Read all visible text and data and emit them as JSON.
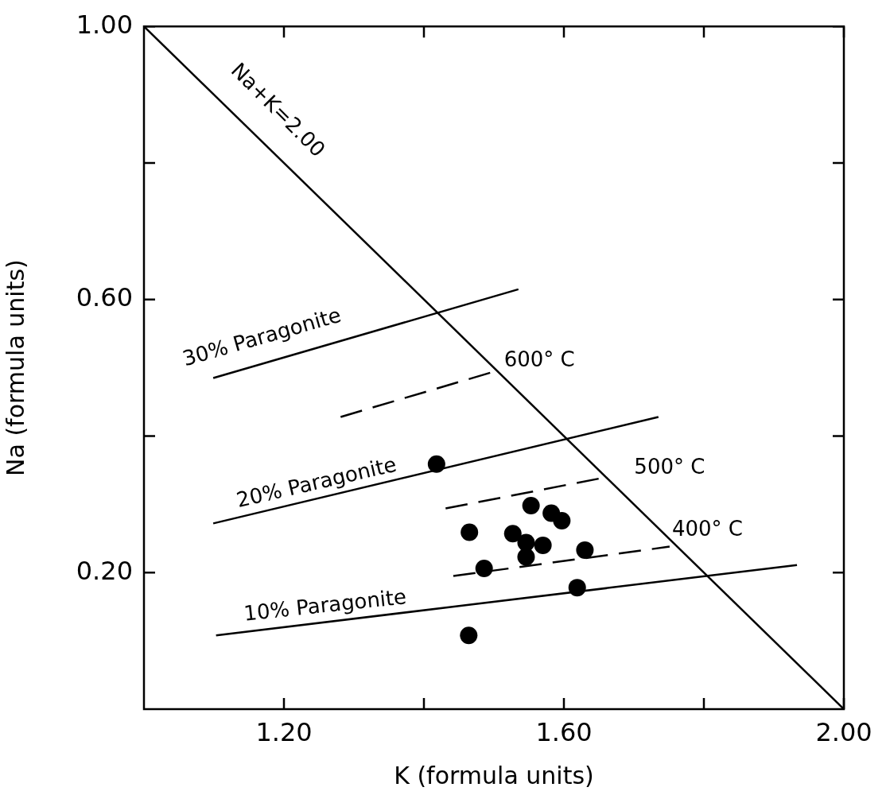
{
  "chart_data": {
    "type": "scatter",
    "xlabel": "K (formula units)",
    "ylabel": "Na (formula units)",
    "xlim": [
      1.0,
      2.0
    ],
    "ylim": [
      0.0,
      1.0
    ],
    "xticks": [
      {
        "value": 1.2,
        "label": "1.20"
      },
      {
        "value": 1.4,
        "label": null
      },
      {
        "value": 1.6,
        "label": "1.60"
      },
      {
        "value": 1.8,
        "label": null
      },
      {
        "value": 2.0,
        "label": "2.00"
      }
    ],
    "yticks": [
      {
        "value": 0.2,
        "label": "0.20"
      },
      {
        "value": 0.4,
        "label": null
      },
      {
        "value": 0.6,
        "label": "0.60"
      },
      {
        "value": 0.8,
        "label": null
      },
      {
        "value": 1.0,
        "label": "1.00"
      }
    ],
    "series": [
      {
        "color": "#000000",
        "marker": "circle",
        "x": [
          1.418,
          1.553,
          1.582,
          1.597,
          1.465,
          1.527,
          1.546,
          1.57,
          1.546,
          1.63,
          1.486,
          1.619,
          1.464
        ],
        "values": [
          0.359,
          0.298,
          0.287,
          0.276,
          0.259,
          0.257,
          0.244,
          0.24,
          0.223,
          0.233,
          0.206,
          0.178,
          0.108
        ]
      },
      {
        "type": "line",
        "color": "#000000",
        "marker": "none",
        "line_style": "solid",
        "x": [
          1.0,
          2.0
        ],
        "values": [
          1.0,
          0.0
        ]
      },
      {
        "type": "line",
        "color": "#000000",
        "marker": "none",
        "line_style": "solid",
        "x": [
          1.099,
          1.535
        ],
        "values": [
          0.485,
          0.615
        ]
      },
      {
        "type": "line",
        "color": "#000000",
        "marker": "none",
        "line_style": "dashed",
        "x": [
          1.281,
          1.499
        ],
        "values": [
          0.428,
          0.494
        ]
      },
      {
        "type": "line",
        "color": "#000000",
        "marker": "none",
        "line_style": "solid",
        "x": [
          1.099,
          1.735
        ],
        "values": [
          0.272,
          0.428
        ]
      },
      {
        "type": "line",
        "color": "#000000",
        "marker": "none",
        "line_style": "dashed",
        "x": [
          1.431,
          1.652
        ],
        "values": [
          0.294,
          0.338
        ]
      },
      {
        "type": "line",
        "color": "#000000",
        "marker": "none",
        "line_style": "dashed",
        "x": [
          1.442,
          1.751
        ],
        "values": [
          0.195,
          0.238
        ]
      },
      {
        "type": "line",
        "color": "#000000",
        "marker": "none",
        "line_style": "solid",
        "x": [
          1.103,
          1.933
        ],
        "values": [
          0.108,
          0.211
        ]
      }
    ],
    "annotations": [
      "Na+K=2.00",
      "30% Paragonite",
      "600° C",
      "20% Paragonite",
      "500° C",
      "400° C",
      "10% Paragonite"
    ]
  }
}
